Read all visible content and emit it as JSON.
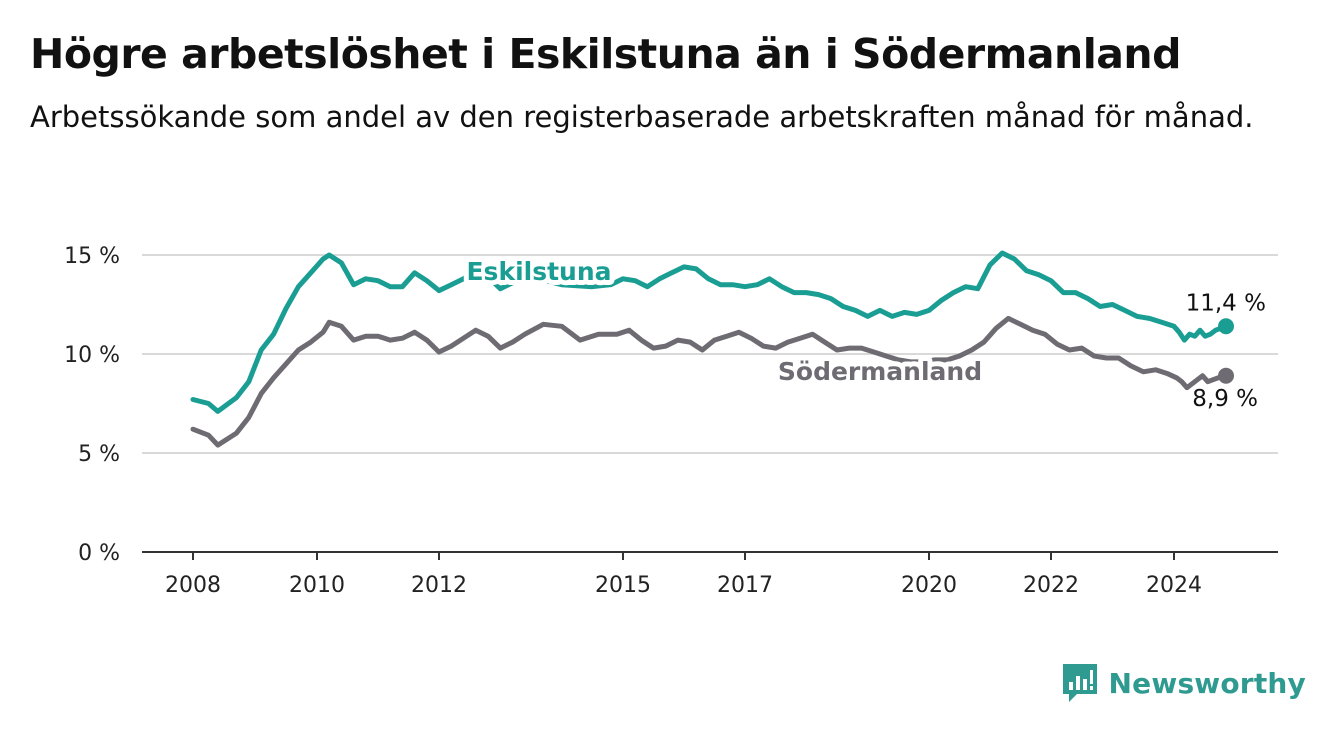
{
  "title": "Högre arbetslöshet i Eskilstuna än i Södermanland",
  "subtitle": "Arbetssökande som andel av den registerbaserade arbetskraften månad för månad.",
  "brand": {
    "name": "Newsworthy",
    "icon": "newsworthy-chart-icon"
  },
  "colors": {
    "eskilstuna": "#1a9e94",
    "sodermanland": "#6e6c72",
    "grid": "#d9d9d9",
    "axis": "#333333",
    "brand": "#2f9a90"
  },
  "chart_data": {
    "type": "line",
    "title": "Högre arbetslöshet i Eskilstuna än i Södermanland",
    "xlabel": "",
    "ylabel": "",
    "ylim": [
      0,
      15
    ],
    "xlim": [
      2008,
      2025.5
    ],
    "yticks": [
      0,
      5,
      10,
      15
    ],
    "ytick_labels": [
      "0 %",
      "5 %",
      "10 %",
      "15 %"
    ],
    "xticks": [
      2008,
      2010,
      2012,
      2015,
      2017,
      2020,
      2022,
      2024
    ],
    "xtick_labels": [
      "2008",
      "2010",
      "2012",
      "2015",
      "2017",
      "2020",
      "2022",
      "2024"
    ],
    "grid": true,
    "series": [
      {
        "name": "Eskilstuna",
        "color": "#1a9e94",
        "end_label": "11,4 %",
        "points": [
          [
            2008.0,
            7.7
          ],
          [
            2008.25,
            7.5
          ],
          [
            2008.4,
            7.1
          ],
          [
            2008.7,
            7.8
          ],
          [
            2008.9,
            8.6
          ],
          [
            2009.1,
            10.2
          ],
          [
            2009.3,
            11.0
          ],
          [
            2009.5,
            12.3
          ],
          [
            2009.7,
            13.4
          ],
          [
            2009.9,
            14.1
          ],
          [
            2010.1,
            14.8
          ],
          [
            2010.2,
            15.0
          ],
          [
            2010.4,
            14.6
          ],
          [
            2010.6,
            13.5
          ],
          [
            2010.8,
            13.8
          ],
          [
            2011.0,
            13.7
          ],
          [
            2011.2,
            13.4
          ],
          [
            2011.4,
            13.4
          ],
          [
            2011.6,
            14.1
          ],
          [
            2011.8,
            13.7
          ],
          [
            2012.0,
            13.2
          ],
          [
            2012.2,
            13.5
          ],
          [
            2012.4,
            13.8
          ],
          [
            2012.6,
            14.2
          ],
          [
            2012.8,
            13.9
          ],
          [
            2013.0,
            13.3
          ],
          [
            2013.2,
            13.6
          ],
          [
            2013.5,
            13.9
          ],
          [
            2014.0,
            13.5
          ],
          [
            2014.5,
            13.4
          ],
          [
            2014.8,
            13.5
          ],
          [
            2015.0,
            13.8
          ],
          [
            2015.2,
            13.7
          ],
          [
            2015.4,
            13.4
          ],
          [
            2015.6,
            13.8
          ],
          [
            2015.8,
            14.1
          ],
          [
            2016.0,
            14.4
          ],
          [
            2016.2,
            14.3
          ],
          [
            2016.4,
            13.8
          ],
          [
            2016.6,
            13.5
          ],
          [
            2016.8,
            13.5
          ],
          [
            2017.0,
            13.4
          ],
          [
            2017.2,
            13.5
          ],
          [
            2017.4,
            13.8
          ],
          [
            2017.6,
            13.4
          ],
          [
            2017.8,
            13.1
          ],
          [
            2018.0,
            13.1
          ],
          [
            2018.2,
            13.0
          ],
          [
            2018.4,
            12.8
          ],
          [
            2018.6,
            12.4
          ],
          [
            2018.8,
            12.2
          ],
          [
            2019.0,
            11.9
          ],
          [
            2019.2,
            12.2
          ],
          [
            2019.4,
            11.9
          ],
          [
            2019.6,
            12.1
          ],
          [
            2019.8,
            12.0
          ],
          [
            2020.0,
            12.2
          ],
          [
            2020.2,
            12.7
          ],
          [
            2020.4,
            13.1
          ],
          [
            2020.6,
            13.4
          ],
          [
            2020.8,
            13.3
          ],
          [
            2021.0,
            14.5
          ],
          [
            2021.2,
            15.1
          ],
          [
            2021.4,
            14.8
          ],
          [
            2021.6,
            14.2
          ],
          [
            2021.8,
            14.0
          ],
          [
            2022.0,
            13.7
          ],
          [
            2022.2,
            13.1
          ],
          [
            2022.4,
            13.1
          ],
          [
            2022.6,
            12.8
          ],
          [
            2022.8,
            12.4
          ],
          [
            2023.0,
            12.5
          ],
          [
            2023.2,
            12.2
          ],
          [
            2023.4,
            11.9
          ],
          [
            2023.6,
            11.8
          ],
          [
            2023.8,
            11.6
          ],
          [
            2024.0,
            11.4
          ],
          [
            2024.2,
            11.1
          ],
          [
            2024.4,
            10.7
          ],
          [
            2024.6,
            11.0
          ],
          [
            2024.8,
            10.9
          ],
          [
            2025.0,
            11.2
          ],
          [
            2025.2,
            10.9
          ],
          [
            2025.4,
            11.0
          ],
          [
            2025.6,
            11.2
          ],
          [
            2025.8,
            11.3
          ],
          [
            2026.0,
            11.4
          ]
        ]
      },
      {
        "name": "Södermanland",
        "color": "#6e6c72",
        "end_label": "8,9 %",
        "points": [
          [
            2008.0,
            6.2
          ],
          [
            2008.25,
            5.9
          ],
          [
            2008.4,
            5.4
          ],
          [
            2008.7,
            6.0
          ],
          [
            2008.9,
            6.8
          ],
          [
            2009.1,
            8.0
          ],
          [
            2009.3,
            8.8
          ],
          [
            2009.5,
            9.5
          ],
          [
            2009.7,
            10.2
          ],
          [
            2009.9,
            10.6
          ],
          [
            2010.1,
            11.1
          ],
          [
            2010.2,
            11.6
          ],
          [
            2010.4,
            11.4
          ],
          [
            2010.6,
            10.7
          ],
          [
            2010.8,
            10.9
          ],
          [
            2011.0,
            10.9
          ],
          [
            2011.2,
            10.7
          ],
          [
            2011.4,
            10.8
          ],
          [
            2011.6,
            11.1
          ],
          [
            2011.8,
            10.7
          ],
          [
            2012.0,
            10.1
          ],
          [
            2012.2,
            10.4
          ],
          [
            2012.4,
            10.8
          ],
          [
            2012.6,
            11.2
          ],
          [
            2012.8,
            10.9
          ],
          [
            2013.0,
            10.3
          ],
          [
            2013.2,
            10.6
          ],
          [
            2013.4,
            11.0
          ],
          [
            2013.7,
            11.5
          ],
          [
            2014.0,
            11.4
          ],
          [
            2014.3,
            10.7
          ],
          [
            2014.6,
            11.0
          ],
          [
            2014.9,
            11.0
          ],
          [
            2015.1,
            11.2
          ],
          [
            2015.3,
            10.7
          ],
          [
            2015.5,
            10.3
          ],
          [
            2015.7,
            10.4
          ],
          [
            2015.9,
            10.7
          ],
          [
            2016.1,
            10.6
          ],
          [
            2016.3,
            10.2
          ],
          [
            2016.5,
            10.7
          ],
          [
            2016.7,
            10.9
          ],
          [
            2016.9,
            11.1
          ],
          [
            2017.1,
            10.8
          ],
          [
            2017.3,
            10.4
          ],
          [
            2017.5,
            10.3
          ],
          [
            2017.7,
            10.6
          ],
          [
            2017.9,
            10.8
          ],
          [
            2018.1,
            11.0
          ],
          [
            2018.3,
            10.6
          ],
          [
            2018.5,
            10.2
          ],
          [
            2018.7,
            10.3
          ],
          [
            2018.9,
            10.3
          ],
          [
            2019.1,
            10.1
          ],
          [
            2019.3,
            9.9
          ],
          [
            2019.5,
            9.7
          ],
          [
            2019.7,
            9.6
          ],
          [
            2019.9,
            9.6
          ],
          [
            2020.1,
            9.7
          ],
          [
            2020.3,
            9.7
          ],
          [
            2020.5,
            9.9
          ],
          [
            2020.7,
            10.2
          ],
          [
            2020.9,
            10.6
          ],
          [
            2021.1,
            11.3
          ],
          [
            2021.3,
            11.8
          ],
          [
            2021.5,
            11.5
          ],
          [
            2021.7,
            11.2
          ],
          [
            2021.9,
            11.0
          ],
          [
            2022.1,
            10.5
          ],
          [
            2022.3,
            10.2
          ],
          [
            2022.5,
            10.3
          ],
          [
            2022.7,
            9.9
          ],
          [
            2022.9,
            9.8
          ],
          [
            2023.1,
            9.8
          ],
          [
            2023.3,
            9.4
          ],
          [
            2023.5,
            9.1
          ],
          [
            2023.7,
            9.2
          ],
          [
            2023.9,
            9.0
          ],
          [
            2024.1,
            8.8
          ],
          [
            2024.3,
            8.6
          ],
          [
            2024.5,
            8.3
          ],
          [
            2024.7,
            8.5
          ],
          [
            2024.9,
            8.7
          ],
          [
            2025.1,
            8.9
          ],
          [
            2025.3,
            8.6
          ],
          [
            2025.5,
            8.7
          ],
          [
            2025.7,
            8.8
          ],
          [
            2026.0,
            8.9
          ]
        ]
      }
    ]
  }
}
